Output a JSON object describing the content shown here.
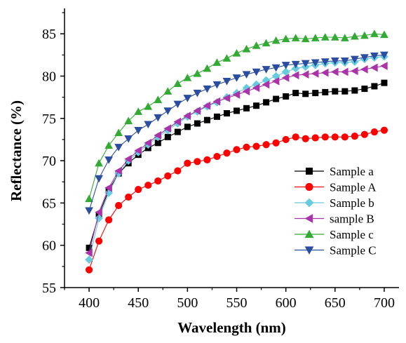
{
  "chart_data": {
    "type": "line",
    "title": "",
    "xlabel": "Wavelength (nm)",
    "ylabel": "Reflectance (%)",
    "xlim": [
      375,
      715
    ],
    "ylim": [
      55,
      88
    ],
    "xticks": [
      400,
      450,
      500,
      550,
      600,
      650,
      700
    ],
    "yticks": [
      55,
      60,
      65,
      70,
      75,
      80,
      85
    ],
    "grid": false,
    "legend_position": "lower-right",
    "x": [
      400,
      410,
      420,
      430,
      440,
      450,
      460,
      470,
      480,
      490,
      500,
      510,
      520,
      530,
      540,
      550,
      560,
      570,
      580,
      590,
      600,
      610,
      620,
      630,
      640,
      650,
      660,
      670,
      680,
      690,
      700
    ],
    "series": [
      {
        "name": "Sample a",
        "color": "#000000",
        "marker": "square",
        "values": [
          59.7,
          63.6,
          66.5,
          68.5,
          69.7,
          70.7,
          71.5,
          72.1,
          72.8,
          73.4,
          74.0,
          74.4,
          74.8,
          75.2,
          75.6,
          75.9,
          76.2,
          76.5,
          76.9,
          77.3,
          77.6,
          78.0,
          77.9,
          78.0,
          78.1,
          78.2,
          78.2,
          78.3,
          78.5,
          78.8,
          79.2
        ]
      },
      {
        "name": "Sample A",
        "color": "#ff0000",
        "marker": "circle",
        "values": [
          57.1,
          60.5,
          63.0,
          64.7,
          65.7,
          66.6,
          67.1,
          67.6,
          68.2,
          68.8,
          69.7,
          69.9,
          70.1,
          70.5,
          70.9,
          71.3,
          71.6,
          71.7,
          71.9,
          72.1,
          72.5,
          72.8,
          72.6,
          72.7,
          72.8,
          72.8,
          72.8,
          72.9,
          73.1,
          73.4,
          73.6
        ]
      },
      {
        "name": "Sample b",
        "color": "#66ccdd",
        "marker": "diamond",
        "values": [
          58.3,
          63.2,
          66.2,
          68.5,
          70.0,
          71.0,
          71.9,
          72.8,
          73.6,
          74.4,
          75.2,
          75.8,
          76.4,
          76.9,
          77.5,
          78.0,
          78.6,
          79.0,
          79.5,
          80.0,
          80.5,
          80.9,
          81.1,
          81.3,
          81.5,
          81.6,
          81.6,
          81.7,
          82.0,
          82.2,
          82.3
        ]
      },
      {
        "name": "sample B",
        "color": "#aa33aa",
        "marker": "triangle-left",
        "values": [
          59.1,
          63.9,
          66.8,
          68.8,
          70.2,
          71.2,
          72.1,
          73.0,
          73.8,
          74.6,
          75.3,
          75.9,
          76.5,
          77.0,
          77.4,
          77.8,
          78.2,
          78.6,
          79.0,
          79.4,
          79.8,
          80.1,
          80.2,
          80.3,
          80.4,
          80.5,
          80.5,
          80.6,
          80.8,
          81.0,
          81.2
        ]
      },
      {
        "name": "Sample c",
        "color": "#33aa33",
        "marker": "triangle-up",
        "values": [
          65.5,
          69.7,
          71.8,
          73.3,
          74.7,
          75.8,
          76.4,
          77.2,
          78.2,
          79.1,
          79.8,
          80.3,
          80.9,
          81.6,
          82.1,
          82.7,
          83.2,
          83.6,
          83.9,
          84.2,
          84.4,
          84.5,
          84.4,
          84.5,
          84.6,
          84.6,
          84.5,
          84.7,
          84.8,
          85.0,
          84.9
        ]
      },
      {
        "name": "Sample C",
        "color": "#2a4da0",
        "marker": "triangle-down",
        "values": [
          64.1,
          67.9,
          70.1,
          71.6,
          72.6,
          73.6,
          74.3,
          75.1,
          75.9,
          76.7,
          77.4,
          78.0,
          78.5,
          79.0,
          79.4,
          79.8,
          80.2,
          80.5,
          80.8,
          81.0,
          81.3,
          81.4,
          81.5,
          81.6,
          81.7,
          81.8,
          81.8,
          82.0,
          82.2,
          82.4,
          82.5
        ]
      }
    ]
  }
}
